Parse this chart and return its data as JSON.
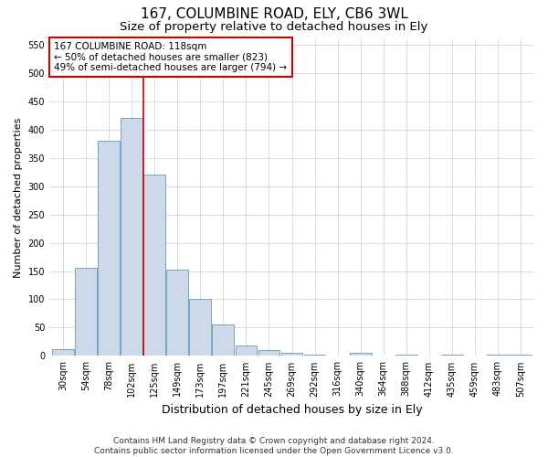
{
  "title1": "167, COLUMBINE ROAD, ELY, CB6 3WL",
  "title2": "Size of property relative to detached houses in Ely",
  "xlabel": "Distribution of detached houses by size in Ely",
  "ylabel": "Number of detached properties",
  "categories": [
    "30sqm",
    "54sqm",
    "78sqm",
    "102sqm",
    "125sqm",
    "149sqm",
    "173sqm",
    "197sqm",
    "221sqm",
    "245sqm",
    "269sqm",
    "292sqm",
    "316sqm",
    "340sqm",
    "364sqm",
    "388sqm",
    "412sqm",
    "435sqm",
    "459sqm",
    "483sqm",
    "507sqm"
  ],
  "values": [
    12,
    155,
    380,
    420,
    320,
    152,
    100,
    55,
    18,
    10,
    5,
    2,
    0,
    5,
    0,
    3,
    0,
    3,
    0,
    3,
    3
  ],
  "bar_color": "#ccd9e8",
  "bar_edge_color": "#6699bb",
  "vline_color": "#cc0000",
  "vline_xindex": 3.5,
  "annotation_text": "167 COLUMBINE ROAD: 118sqm\n← 50% of detached houses are smaller (823)\n49% of semi-detached houses are larger (794) →",
  "annotation_box_color": "#ffffff",
  "annotation_box_edge": "#cc0000",
  "ylim": [
    0,
    560
  ],
  "yticks": [
    0,
    50,
    100,
    150,
    200,
    250,
    300,
    350,
    400,
    450,
    500,
    550
  ],
  "footnote": "Contains HM Land Registry data © Crown copyright and database right 2024.\nContains public sector information licensed under the Open Government Licence v3.0.",
  "bg_color": "#ffffff",
  "grid_color": "#ccd8e8",
  "title_fontsize": 11,
  "subtitle_fontsize": 9.5,
  "xlabel_fontsize": 9,
  "ylabel_fontsize": 8,
  "tick_fontsize": 7,
  "annotation_fontsize": 7.5,
  "footnote_fontsize": 6.5
}
